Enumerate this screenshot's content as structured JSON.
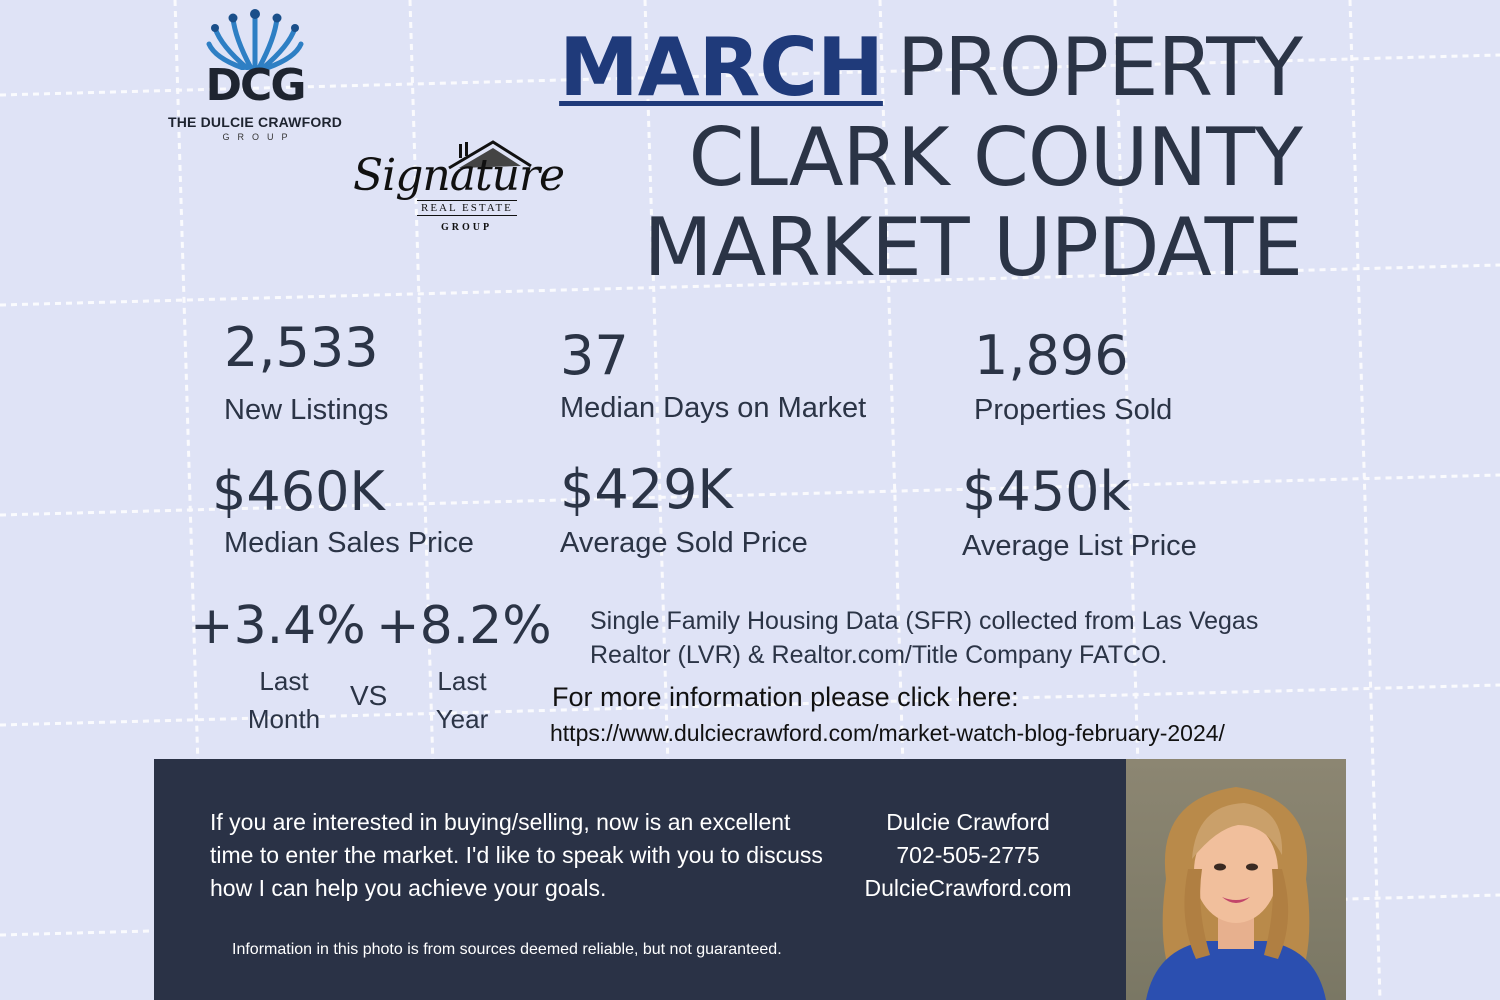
{
  "logos": {
    "dcg_mark": "DCG",
    "dcg_name": "THE DULCIE CRAWFORD",
    "dcg_group": "GROUP",
    "signature_script": "Signature",
    "signature_line1": "REAL ESTATE",
    "signature_line2": "GROUP"
  },
  "title": {
    "month": "MARCH",
    "line1_rest": "PROPERTY",
    "line2": "CLARK COUNTY",
    "line3": "MARKET UPDATE"
  },
  "stats": [
    {
      "value": "2,533",
      "label": "New Listings"
    },
    {
      "value": "37",
      "label": "Median Days on Market"
    },
    {
      "value": "1,896",
      "label": "Properties Sold"
    },
    {
      "value": "$460K",
      "label": "Median Sales Price"
    },
    {
      "value": "$429K",
      "label": "Average Sold Price"
    },
    {
      "value": "$450k",
      "label": "Average List Price"
    }
  ],
  "comparison": {
    "last_month_change": "+3.4%",
    "last_year_change": "+8.2%",
    "last_month_label_1": "Last",
    "last_month_label_2": "Month",
    "vs": "VS",
    "last_year_label_1": "Last",
    "last_year_label_2": "Year"
  },
  "source_note": "Single Family Housing Data (SFR) collected from Las Vegas Realtor (LVR) & Realtor.com/Title Company FATCO.",
  "more_info": {
    "label": "For more information please click here:",
    "url": "https://www.dulciecrawford.com/market-watch-blog-february-2024/"
  },
  "footer": {
    "pitch": "If you are interested in buying/selling, now is an excellent time to enter the market. I'd like to speak with you to discuss how I can help you achieve your goals.",
    "name": "Dulcie Crawford",
    "phone": "702-505-2775",
    "website": "DulcieCrawford.com",
    "disclaimer": "Information in this photo is from sources deemed reliable, but not guaranteed."
  },
  "colors": {
    "background": "#dfe3f6",
    "text": "#2b3446",
    "accent": "#1f3a7a",
    "footer_bg": "#2a3246"
  }
}
